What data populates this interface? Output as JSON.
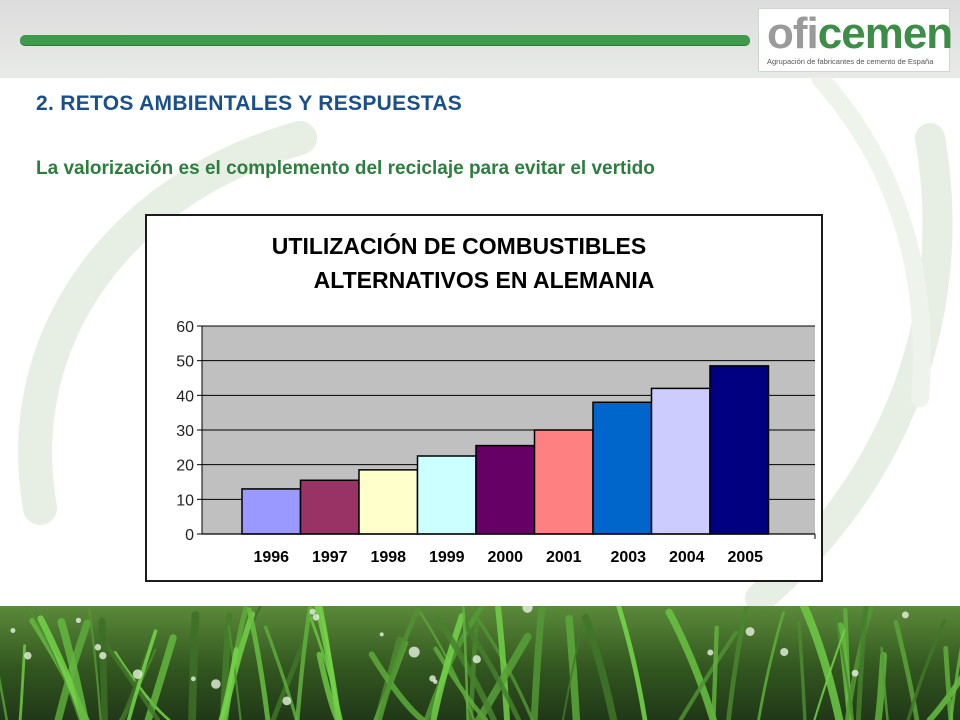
{
  "logo": {
    "brand_part1": "ofi",
    "brand_part2": "cemen",
    "tagline": "Agrupación de fabricantes de cemento de España"
  },
  "header": {
    "section_title": "2. RETOS AMBIENTALES Y RESPUESTAS",
    "subtitle": "La valorización es el complemento del reciclaje para evitar el vertido"
  },
  "colors": {
    "accent_green": "#3f9a4c",
    "title_blue": "#1a4f8a",
    "subtitle_green": "#2d7d3f",
    "plot_background": "#c0c0c0"
  },
  "chart_data": {
    "type": "bar",
    "title_line1": "UTILIZACIÓN DE COMBUSTIBLES",
    "title_line2": "ALTERNATIVOS EN ALEMANIA",
    "categories": [
      "1996",
      "1997",
      "1998",
      "1999",
      "2000",
      "2001",
      "2003",
      "2004",
      "2005"
    ],
    "values": [
      13,
      15.5,
      18.5,
      22.5,
      25.5,
      30,
      38,
      42,
      48.5
    ],
    "bar_colors": [
      "#9999ff",
      "#993366",
      "#ffffcc",
      "#ccffff",
      "#660066",
      "#ff8080",
      "#0066cc",
      "#ccccff",
      "#000080"
    ],
    "yticks": [
      "0",
      "10",
      "20",
      "30",
      "40",
      "50",
      "60"
    ],
    "ylim": [
      0,
      60
    ],
    "grid": true,
    "legend": "none"
  }
}
